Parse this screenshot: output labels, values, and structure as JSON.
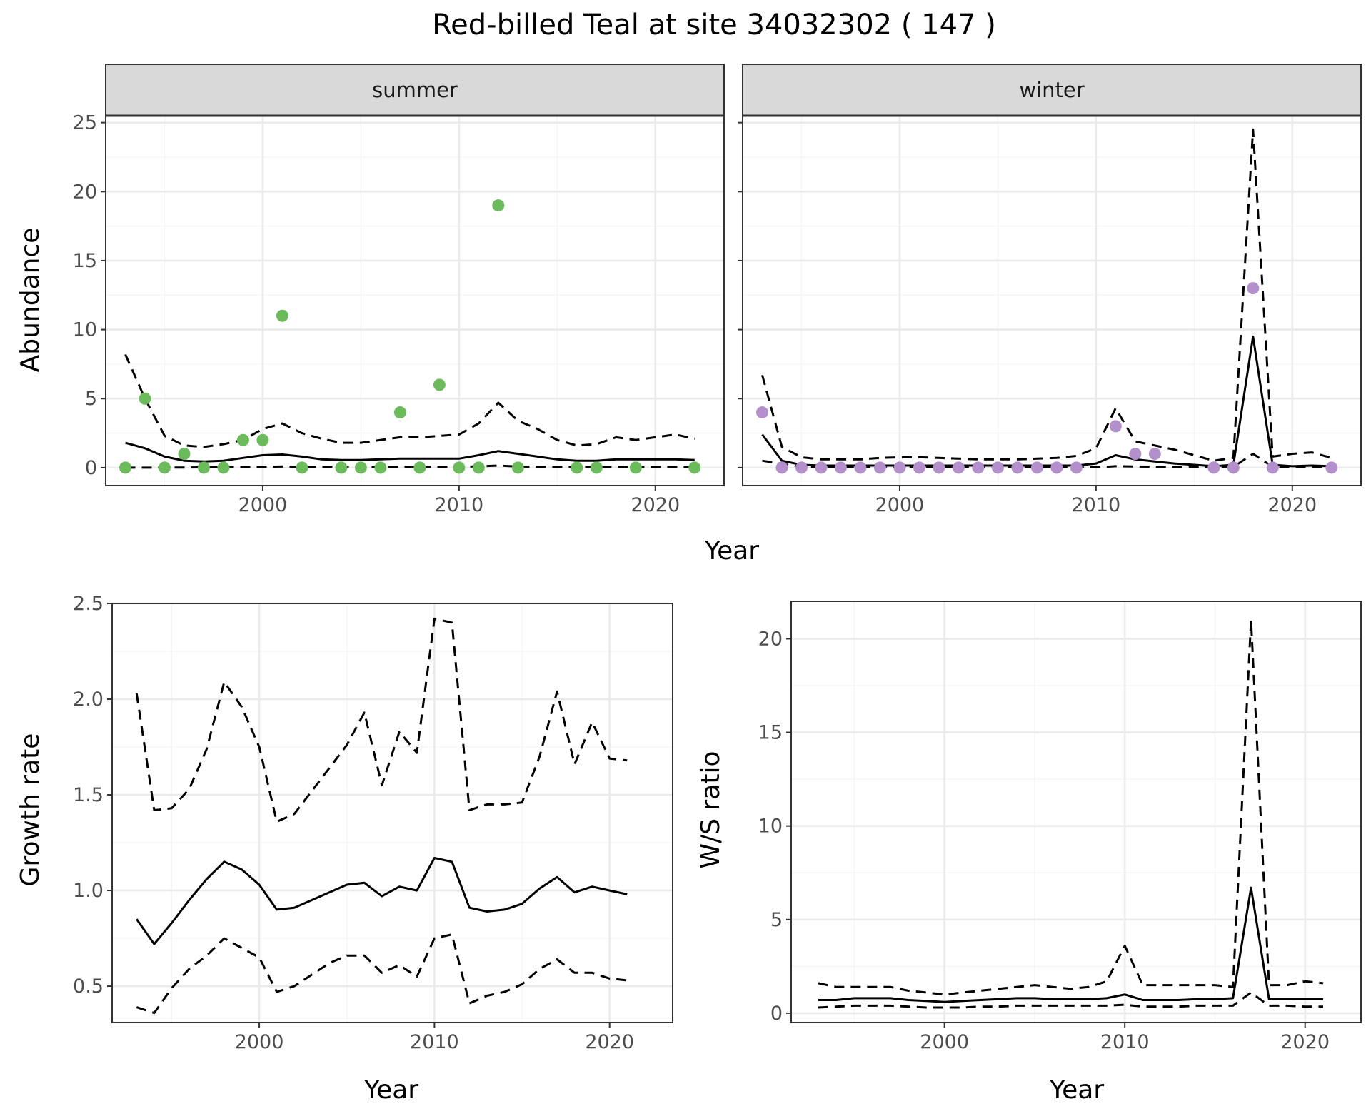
{
  "title": "Red-billed Teal at site 34032302 ( 147 )",
  "colors": {
    "summer_points": "#6bba5b",
    "winter_points": "#b38fcc",
    "lines": "#000000",
    "grid_major": "#ebebeb",
    "grid_minor": "#f5f5f5",
    "strip_fill": "#d9d9d9",
    "strip_border": "#333333"
  },
  "chart_data": [
    {
      "type": "scatter",
      "panel": "summer",
      "strip_label": "summer",
      "xlabel": "Year",
      "ylabel": "Abundance",
      "xlim": [
        1992,
        2023.5
      ],
      "ylim": [
        -1.3,
        25.5
      ],
      "xticks": [
        2000,
        2010,
        2020
      ],
      "yticks": [
        0,
        5,
        10,
        15,
        20,
        25
      ],
      "tick_labels_x": [
        "2000",
        "2010",
        "2020"
      ],
      "tick_labels_y": [
        "0",
        "5",
        "10",
        "15",
        "20",
        "25"
      ],
      "points": {
        "x": [
          1993,
          1994,
          1995,
          1996,
          1997,
          1998,
          1999,
          2000,
          2001,
          2002,
          2004,
          2005,
          2006,
          2007,
          2008,
          2009,
          2010,
          2011,
          2012,
          2013,
          2016,
          2017,
          2019,
          2022
        ],
        "y": [
          0,
          5,
          0,
          1,
          0,
          0,
          2,
          2,
          11,
          0,
          0,
          0,
          0,
          4,
          0,
          6,
          0,
          0,
          19,
          0,
          0,
          0,
          0,
          0
        ]
      },
      "lines": [
        {
          "style": "solid",
          "x": [
            1993,
            1994,
            1995,
            1996,
            1997,
            1998,
            1999,
            2000,
            2001,
            2002,
            2003,
            2004,
            2005,
            2006,
            2007,
            2008,
            2009,
            2010,
            2011,
            2012,
            2013,
            2014,
            2015,
            2016,
            2017,
            2018,
            2019,
            2020,
            2021,
            2022
          ],
          "y": [
            1.8,
            1.4,
            0.8,
            0.5,
            0.45,
            0.5,
            0.7,
            0.9,
            0.95,
            0.8,
            0.6,
            0.55,
            0.55,
            0.6,
            0.65,
            0.65,
            0.65,
            0.65,
            0.9,
            1.2,
            1.0,
            0.8,
            0.6,
            0.5,
            0.5,
            0.6,
            0.6,
            0.6,
            0.6,
            0.55
          ]
        },
        {
          "style": "dashed",
          "x": [
            1993,
            1994,
            1995,
            1996,
            1997,
            1998,
            1999,
            2000,
            2001,
            2002,
            2003,
            2004,
            2005,
            2006,
            2007,
            2008,
            2009,
            2010,
            2011,
            2012,
            2013,
            2014,
            2015,
            2016,
            2017,
            2018,
            2019,
            2020,
            2021,
            2022
          ],
          "y": [
            8.2,
            5.0,
            2.3,
            1.6,
            1.5,
            1.7,
            2.0,
            2.8,
            3.2,
            2.5,
            2.1,
            1.8,
            1.8,
            2.0,
            2.2,
            2.2,
            2.3,
            2.4,
            3.2,
            4.7,
            3.4,
            2.8,
            2.0,
            1.6,
            1.7,
            2.2,
            2.0,
            2.2,
            2.4,
            2.1
          ]
        },
        {
          "style": "dashed",
          "x": [
            1993,
            1995,
            2000,
            2001,
            2002,
            2005,
            2010,
            2012,
            2013,
            2015,
            2020,
            2022
          ],
          "y": [
            0,
            0,
            0.05,
            0.08,
            0.05,
            0.05,
            0.05,
            0.15,
            0.08,
            0.05,
            0.05,
            0.03
          ]
        }
      ]
    },
    {
      "type": "scatter",
      "panel": "winter",
      "strip_label": "winter",
      "xlabel": "Year",
      "ylabel": "Abundance",
      "xlim": [
        1992,
        2023.5
      ],
      "ylim": [
        -1.3,
        25.5
      ],
      "xticks": [
        2000,
        2010,
        2020
      ],
      "tick_labels_x": [
        "2000",
        "2010",
        "2020"
      ],
      "points": {
        "x": [
          1993,
          1994,
          1995,
          1996,
          1997,
          1998,
          1999,
          2000,
          2001,
          2002,
          2003,
          2004,
          2005,
          2006,
          2007,
          2008,
          2009,
          2011,
          2012,
          2013,
          2016,
          2017,
          2018,
          2019,
          2022
        ],
        "y": [
          4,
          0,
          0,
          0,
          0,
          0,
          0,
          0,
          0,
          0,
          0,
          0,
          0,
          0,
          0,
          0,
          0,
          3,
          1,
          1,
          0,
          0,
          13,
          0,
          0
        ]
      },
      "lines": [
        {
          "style": "solid",
          "x": [
            1993,
            1994,
            1995,
            1996,
            1997,
            1998,
            1999,
            2000,
            2001,
            2002,
            2003,
            2004,
            2005,
            2006,
            2007,
            2008,
            2009,
            2010,
            2011,
            2012,
            2013,
            2014,
            2015,
            2016,
            2017,
            2018,
            2019,
            2020,
            2021,
            2022
          ],
          "y": [
            2.4,
            0.5,
            0.2,
            0.15,
            0.15,
            0.15,
            0.15,
            0.15,
            0.15,
            0.15,
            0.15,
            0.15,
            0.15,
            0.15,
            0.15,
            0.15,
            0.15,
            0.3,
            0.9,
            0.6,
            0.45,
            0.3,
            0.2,
            0.1,
            0.2,
            9.5,
            0.2,
            0.1,
            0.15,
            0.1
          ]
        },
        {
          "style": "dashed",
          "x": [
            1993,
            1994,
            1995,
            1996,
            1997,
            1998,
            1999,
            2000,
            2001,
            2002,
            2003,
            2004,
            2005,
            2006,
            2007,
            2008,
            2009,
            2010,
            2011,
            2012,
            2013,
            2014,
            2015,
            2016,
            2017,
            2018,
            2019,
            2020,
            2021,
            2022
          ],
          "y": [
            6.7,
            1.5,
            0.75,
            0.6,
            0.6,
            0.6,
            0.7,
            0.75,
            0.75,
            0.7,
            0.65,
            0.6,
            0.6,
            0.6,
            0.65,
            0.7,
            0.85,
            1.4,
            4.3,
            1.9,
            1.6,
            1.3,
            0.9,
            0.5,
            0.7,
            24.5,
            0.8,
            1.0,
            1.1,
            0.7
          ]
        },
        {
          "style": "dashed",
          "x": [
            1993,
            1995,
            2000,
            2005,
            2010,
            2011,
            2012,
            2015,
            2016,
            2017,
            2018,
            2019,
            2020,
            2022
          ],
          "y": [
            0.5,
            0.05,
            0.02,
            0.02,
            0.02,
            0.1,
            0.08,
            0.03,
            0.02,
            0.05,
            1.0,
            0.05,
            0.02,
            0.02
          ]
        }
      ]
    },
    {
      "type": "line",
      "panel": "growth",
      "xlabel": "Year",
      "ylabel": "Growth rate",
      "xlim": [
        1991.6,
        2023.6
      ],
      "ylim": [
        0.31,
        2.5
      ],
      "xticks": [
        2000,
        2010,
        2020
      ],
      "yticks": [
        0.5,
        1.0,
        1.5,
        2.0,
        2.5
      ],
      "tick_labels_x": [
        "2000",
        "2010",
        "2020"
      ],
      "tick_labels_y": [
        "0.5",
        "1.0",
        "1.5",
        "2.0",
        "2.5"
      ],
      "lines": [
        {
          "style": "solid",
          "x": [
            1993,
            1994,
            1995,
            1996,
            1997,
            1998,
            1999,
            2000,
            2001,
            2002,
            2003,
            2004,
            2005,
            2006,
            2007,
            2008,
            2009,
            2010,
            2011,
            2012,
            2013,
            2014,
            2015,
            2016,
            2017,
            2018,
            2019,
            2020,
            2021
          ],
          "y": [
            0.85,
            0.72,
            0.83,
            0.95,
            1.06,
            1.15,
            1.11,
            1.03,
            0.9,
            0.91,
            0.95,
            0.99,
            1.03,
            1.04,
            0.97,
            1.02,
            1.0,
            1.17,
            1.15,
            0.91,
            0.89,
            0.9,
            0.93,
            1.01,
            1.07,
            0.99,
            1.02,
            1.0,
            0.98
          ]
        },
        {
          "style": "dashed",
          "x": [
            1993,
            1994,
            1995,
            1996,
            1997,
            1998,
            1999,
            2000,
            2001,
            2002,
            2003,
            2004,
            2005,
            2006,
            2007,
            2008,
            2009,
            2010,
            2011,
            2012,
            2013,
            2014,
            2015,
            2016,
            2017,
            2018,
            2019,
            2020,
            2021
          ],
          "y": [
            2.03,
            1.42,
            1.43,
            1.53,
            1.74,
            2.09,
            1.96,
            1.75,
            1.36,
            1.4,
            1.52,
            1.64,
            1.76,
            1.93,
            1.55,
            1.83,
            1.72,
            2.42,
            2.4,
            1.42,
            1.45,
            1.45,
            1.46,
            1.7,
            2.04,
            1.66,
            1.88,
            1.69,
            1.68
          ]
        },
        {
          "style": "dashed",
          "x": [
            1993,
            1994,
            1995,
            1996,
            1997,
            1998,
            1999,
            2000,
            2001,
            2002,
            2003,
            2004,
            2005,
            2006,
            2007,
            2008,
            2009,
            2010,
            2011,
            2012,
            2013,
            2014,
            2015,
            2016,
            2017,
            2018,
            2019,
            2020,
            2021
          ],
          "y": [
            0.39,
            0.36,
            0.49,
            0.59,
            0.66,
            0.75,
            0.7,
            0.65,
            0.47,
            0.5,
            0.56,
            0.62,
            0.66,
            0.66,
            0.57,
            0.61,
            0.55,
            0.75,
            0.77,
            0.41,
            0.45,
            0.47,
            0.51,
            0.59,
            0.64,
            0.57,
            0.57,
            0.54,
            0.53
          ]
        }
      ]
    },
    {
      "type": "line",
      "panel": "ratio",
      "xlabel": "Year",
      "ylabel": "W/S ratio",
      "xlim": [
        1991.5,
        2023.1
      ],
      "ylim": [
        -0.5,
        22
      ],
      "xticks": [
        2000,
        2010,
        2020
      ],
      "yticks": [
        0,
        5,
        10,
        15,
        20
      ],
      "tick_labels_x": [
        "2000",
        "2010",
        "2020"
      ],
      "tick_labels_y": [
        "0",
        "5",
        "10",
        "15",
        "20"
      ],
      "lines": [
        {
          "style": "solid",
          "x": [
            1993,
            1994,
            1995,
            1996,
            1997,
            1998,
            1999,
            2000,
            2001,
            2002,
            2003,
            2004,
            2005,
            2006,
            2007,
            2008,
            2009,
            2010,
            2011,
            2012,
            2013,
            2014,
            2015,
            2016,
            2017,
            2018,
            2019,
            2020,
            2021
          ],
          "y": [
            0.7,
            0.7,
            0.8,
            0.8,
            0.8,
            0.7,
            0.65,
            0.6,
            0.65,
            0.7,
            0.75,
            0.8,
            0.8,
            0.75,
            0.75,
            0.75,
            0.8,
            1.0,
            0.7,
            0.7,
            0.7,
            0.75,
            0.75,
            0.8,
            6.7,
            0.75,
            0.75,
            0.75,
            0.75
          ]
        },
        {
          "style": "dashed",
          "x": [
            1993,
            1994,
            1995,
            1996,
            1997,
            1998,
            1999,
            2000,
            2001,
            2002,
            2003,
            2004,
            2005,
            2006,
            2007,
            2008,
            2009,
            2010,
            2011,
            2012,
            2013,
            2014,
            2015,
            2016,
            2017,
            2018,
            2019,
            2020,
            2021
          ],
          "y": [
            1.6,
            1.4,
            1.4,
            1.4,
            1.4,
            1.2,
            1.1,
            1.0,
            1.1,
            1.2,
            1.3,
            1.4,
            1.5,
            1.4,
            1.3,
            1.4,
            1.7,
            3.6,
            1.5,
            1.5,
            1.5,
            1.5,
            1.5,
            1.4,
            21.0,
            1.5,
            1.5,
            1.7,
            1.6
          ]
        },
        {
          "style": "dashed",
          "x": [
            1993,
            1994,
            1995,
            1996,
            1997,
            1998,
            1999,
            2000,
            2001,
            2002,
            2003,
            2004,
            2005,
            2006,
            2007,
            2008,
            2009,
            2010,
            2011,
            2012,
            2013,
            2014,
            2015,
            2016,
            2017,
            2018,
            2019,
            2020,
            2021
          ],
          "y": [
            0.3,
            0.35,
            0.4,
            0.4,
            0.4,
            0.35,
            0.3,
            0.3,
            0.3,
            0.35,
            0.35,
            0.4,
            0.4,
            0.4,
            0.4,
            0.4,
            0.4,
            0.45,
            0.35,
            0.35,
            0.35,
            0.4,
            0.4,
            0.4,
            1.1,
            0.4,
            0.4,
            0.35,
            0.35
          ]
        }
      ]
    }
  ]
}
